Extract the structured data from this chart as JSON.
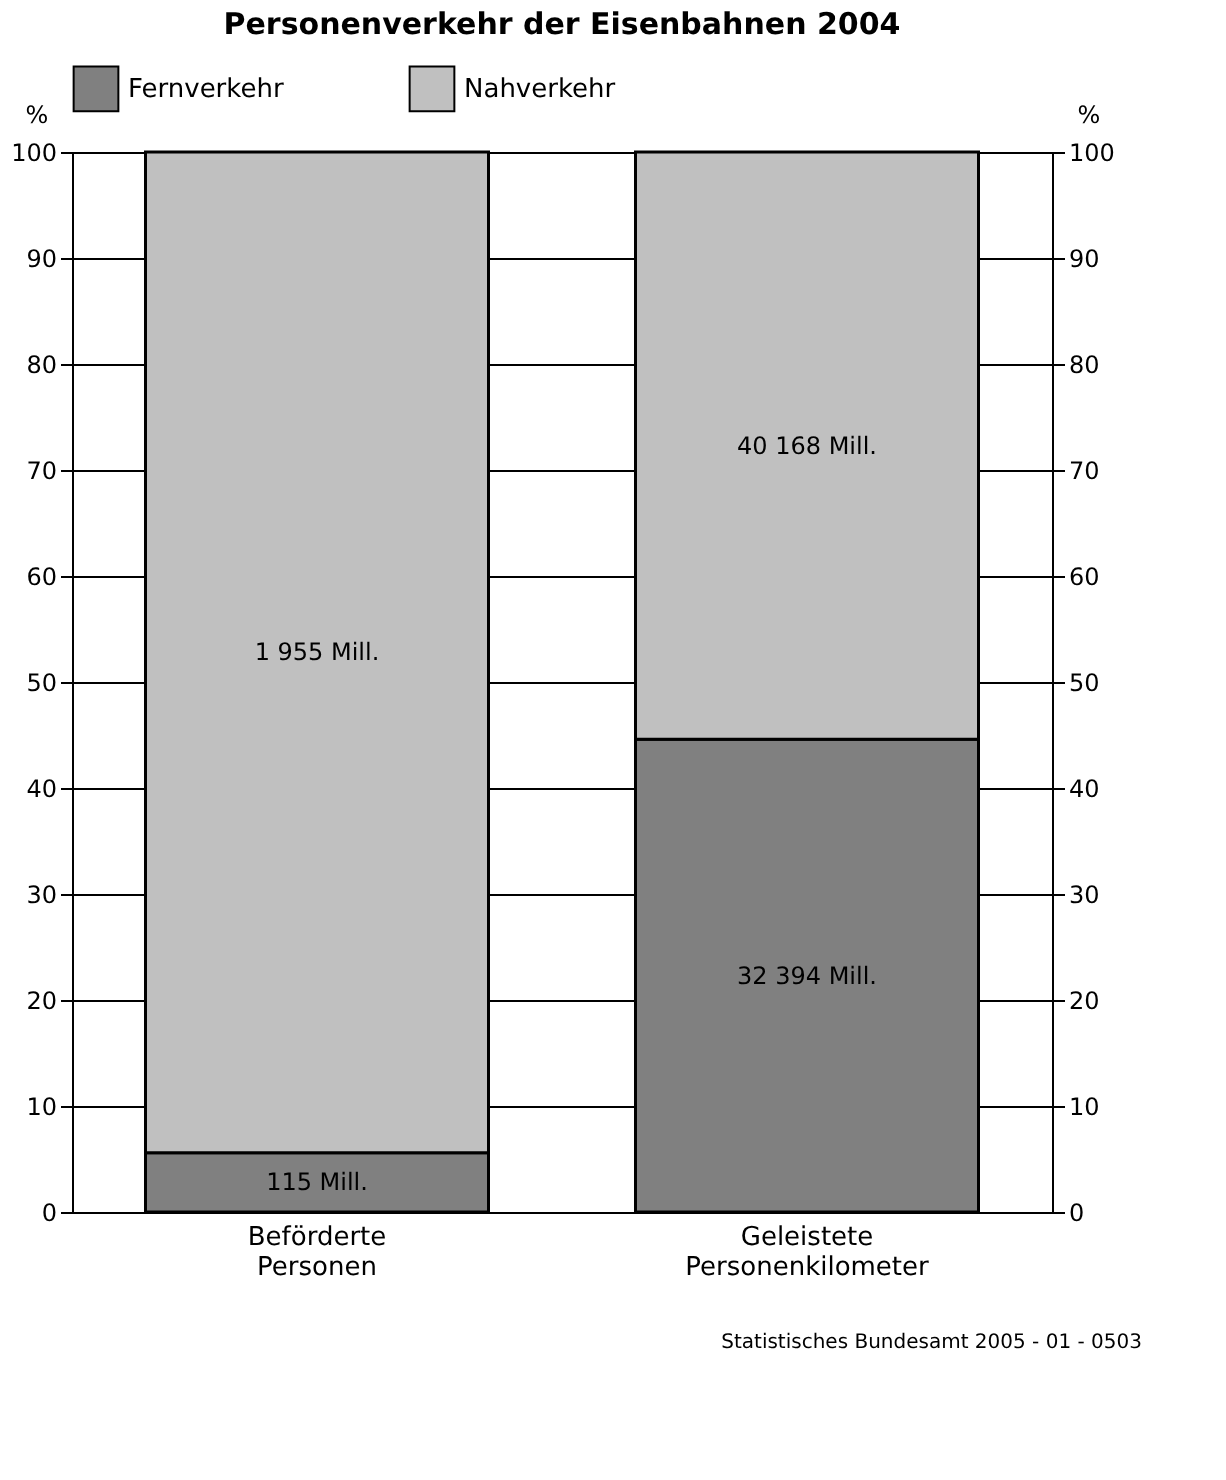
{
  "chart_data": {
    "type": "bar",
    "title": "Personenverkehr der Eisenbahnen 2004",
    "categories": [
      "Beförderte Personen",
      "Geleistete Personenkilometer"
    ],
    "series": [
      {
        "name": "Fernverkehr",
        "color": "#808080",
        "values": [
          5.6,
          44.6
        ]
      },
      {
        "name": "Nahverkehr",
        "color": "#c0c0c0",
        "values": [
          94.4,
          55.4
        ]
      }
    ],
    "stacked": true,
    "ylabel": "%",
    "y2label": "%",
    "ylim": [
      0,
      100
    ],
    "yticks": [
      0,
      10,
      20,
      30,
      40,
      50,
      60,
      70,
      80,
      90,
      100
    ],
    "y2lim": [
      0,
      100
    ],
    "y2ticks": [
      0,
      10,
      20,
      30,
      40,
      50,
      60,
      70,
      80,
      90,
      100
    ],
    "grid": "y",
    "legend": "top",
    "annotations": [
      "115 Mill.",
      "32 394 Mill.",
      "1 955 Mill.",
      "40 168 Mill.",
      "Statistisches Bundesamt 2005 - 01 - 0503"
    ]
  }
}
